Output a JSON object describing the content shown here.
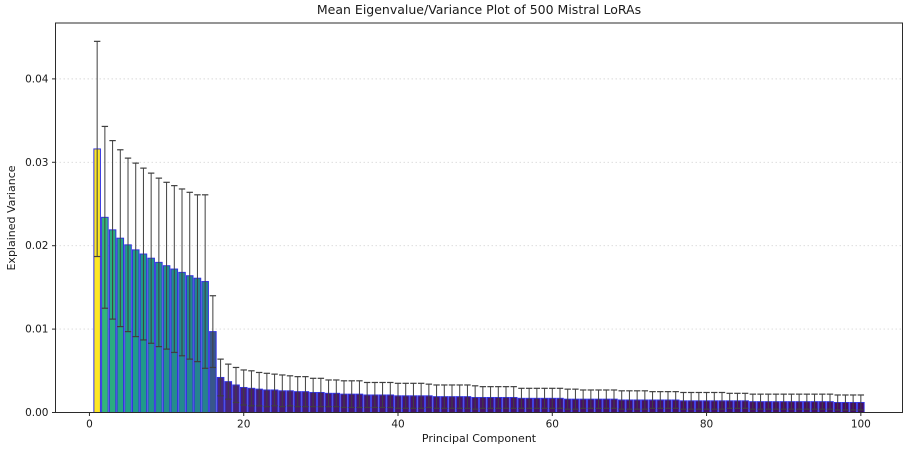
{
  "title": "Mean Eigenvalue/Variance Plot of 500 Mistral LoRAs",
  "chart_data": {
    "type": "bar",
    "title": "Mean Eigenvalue/Variance Plot of 500 Mistral LoRAs",
    "xlabel": "Principal Component",
    "ylabel": "Explained Variance",
    "n_bars": 100,
    "x_start": 1,
    "values": [
      0.0316,
      0.0234,
      0.0219,
      0.0209,
      0.0201,
      0.0195,
      0.019,
      0.0185,
      0.018,
      0.0176,
      0.0172,
      0.0168,
      0.0164,
      0.0161,
      0.0157,
      0.0097,
      0.0042,
      0.0037,
      0.0033,
      0.003,
      0.0029,
      0.0028,
      0.0027,
      0.0027,
      0.0026,
      0.0026,
      0.0025,
      0.0025,
      0.0024,
      0.0024,
      0.0023,
      0.0023,
      0.0022,
      0.0022,
      0.0022,
      0.0021,
      0.0021,
      0.0021,
      0.0021,
      0.002,
      0.002,
      0.002,
      0.002,
      0.002,
      0.0019,
      0.0019,
      0.0019,
      0.0019,
      0.0019,
      0.0018,
      0.0018,
      0.0018,
      0.0018,
      0.0018,
      0.0018,
      0.0017,
      0.0017,
      0.0017,
      0.0017,
      0.0017,
      0.0017,
      0.0016,
      0.0016,
      0.0016,
      0.0016,
      0.0016,
      0.0016,
      0.0016,
      0.0015,
      0.0015,
      0.0015,
      0.0015,
      0.0015,
      0.0015,
      0.0015,
      0.0015,
      0.0014,
      0.0014,
      0.0014,
      0.0014,
      0.0014,
      0.0014,
      0.0014,
      0.0014,
      0.0014,
      0.0013,
      0.0013,
      0.0013,
      0.0013,
      0.0013,
      0.0013,
      0.0013,
      0.0013,
      0.0013,
      0.0013,
      0.0013,
      0.0012,
      0.0012,
      0.0012,
      0.0012
    ],
    "errors": [
      0.0129,
      0.0109,
      0.0107,
      0.0106,
      0.0104,
      0.0104,
      0.0103,
      0.0102,
      0.0101,
      0.01,
      0.01,
      0.01,
      0.01,
      0.01,
      0.0104,
      0.0043,
      0.0022,
      0.0021,
      0.0021,
      0.0021,
      0.0021,
      0.002,
      0.002,
      0.0019,
      0.0019,
      0.0018,
      0.0018,
      0.0018,
      0.0017,
      0.0017,
      0.0016,
      0.0016,
      0.0016,
      0.0016,
      0.0016,
      0.0015,
      0.0015,
      0.0015,
      0.0015,
      0.0015,
      0.0015,
      0.0015,
      0.0015,
      0.0014,
      0.0014,
      0.0014,
      0.0014,
      0.0014,
      0.0014,
      0.0014,
      0.0013,
      0.0013,
      0.0013,
      0.0013,
      0.0013,
      0.0012,
      0.0012,
      0.0012,
      0.0012,
      0.0012,
      0.0012,
      0.0012,
      0.0012,
      0.0011,
      0.0011,
      0.0011,
      0.0011,
      0.0011,
      0.0011,
      0.0011,
      0.0011,
      0.0011,
      0.001,
      0.001,
      0.001,
      0.001,
      0.001,
      0.001,
      0.001,
      0.001,
      0.001,
      0.001,
      0.0009,
      0.0009,
      0.0009,
      0.0009,
      0.0009,
      0.0009,
      0.0009,
      0.0009,
      0.0009,
      0.0009,
      0.0009,
      0.0009,
      0.0009,
      0.0009,
      0.0009,
      0.0009,
      0.0009,
      0.0009
    ],
    "xticks": [
      0,
      20,
      40,
      60,
      80,
      100
    ],
    "yticks": [
      0.0,
      0.01,
      0.02,
      0.03,
      0.04
    ],
    "ytick_labels": [
      "0.00",
      "0.01",
      "0.02",
      "0.03",
      "0.04"
    ],
    "xlim": [
      -4.4,
      105.4
    ],
    "ylim": [
      0,
      0.0467
    ],
    "grid": "horizontal-dashed",
    "legend": "none",
    "colormap": "viridis-by-value",
    "viridis_stops": [
      "#440154",
      "#482878",
      "#3e4989",
      "#31688e",
      "#26828e",
      "#1f9e89",
      "#35b779",
      "#6ece58",
      "#fde725"
    ],
    "bar_width_units": 0.85,
    "bar_edge_color": "#3232e0",
    "error_color": "#3f3f3f",
    "grid_color": "#d9d9d9",
    "spine_color": "#2b2b2b",
    "background": "#ffffff"
  }
}
